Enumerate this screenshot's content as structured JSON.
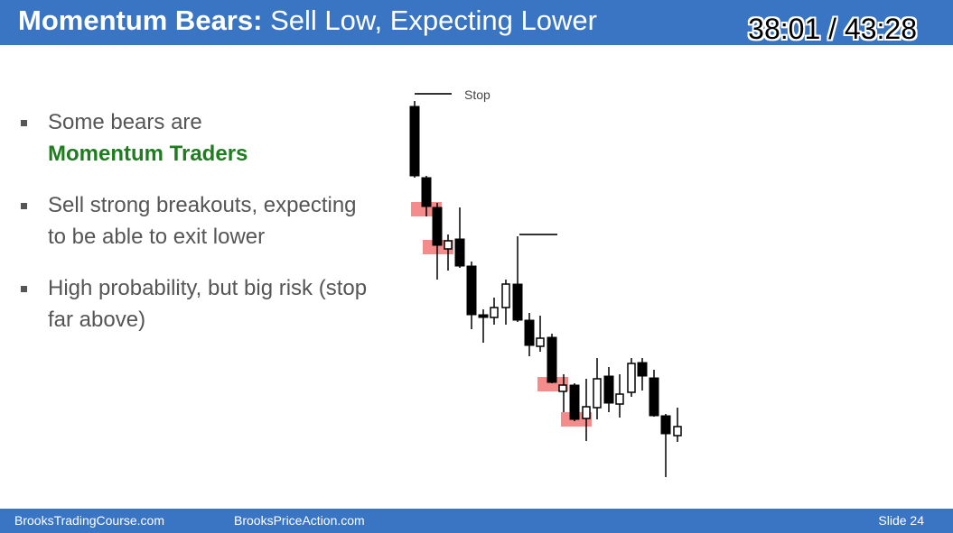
{
  "header": {
    "title_bold": "Momentum Bears:",
    "title_rest": "Sell Low, Expecting Lower",
    "timer": "38:01 / 43:28"
  },
  "bullets": [
    {
      "text": "Some bears are",
      "highlight": "Momentum Traders"
    },
    {
      "text": "Sell strong breakouts, expecting to be able to exit lower"
    },
    {
      "text": "High probability, but big risk (stop far above)"
    }
  ],
  "chart": {
    "stop_label": "Stop",
    "bear_color": "#000000",
    "bull_color": "#ffffff",
    "entry_highlight_color": "#f26f6f"
  },
  "footer": {
    "left": "BrooksTradingCourse.com",
    "center": "BrooksPriceAction.com",
    "slide": "Slide 24"
  }
}
